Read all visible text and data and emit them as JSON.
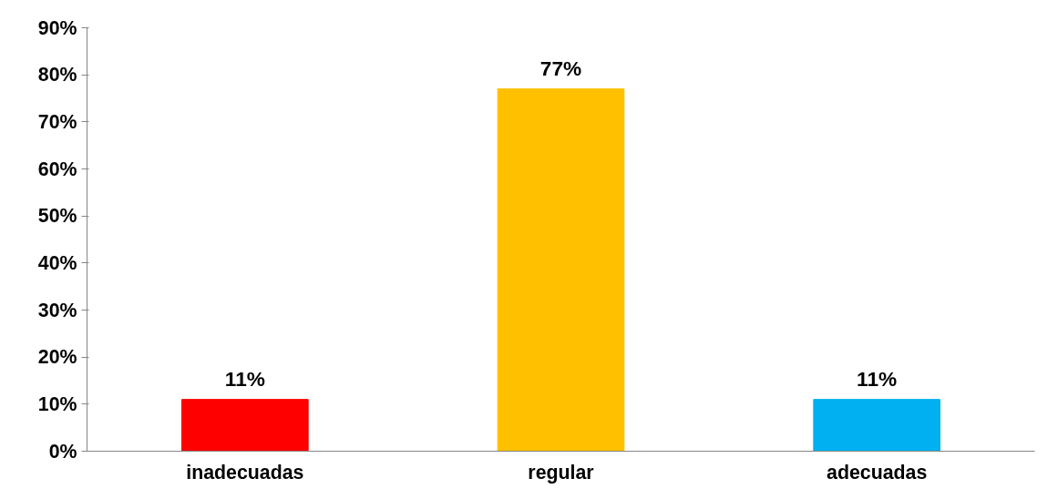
{
  "chart_data": {
    "type": "bar",
    "categories": [
      "inadecuadas",
      "regular",
      "adecuadas"
    ],
    "values": [
      11,
      77,
      11
    ],
    "colors": [
      "#ff0000",
      "#ffc000",
      "#00b0f0"
    ],
    "value_labels": [
      "11%",
      "77%",
      "11%"
    ],
    "ylim": [
      0,
      90
    ],
    "yticks": [
      {
        "value": 0,
        "label": "0%"
      },
      {
        "value": 10,
        "label": "10%"
      },
      {
        "value": 20,
        "label": "20%"
      },
      {
        "value": 30,
        "label": "30%"
      },
      {
        "value": 40,
        "label": "40%"
      },
      {
        "value": 50,
        "label": "50%"
      },
      {
        "value": 60,
        "label": "60%"
      },
      {
        "value": 70,
        "label": "70%"
      },
      {
        "value": 80,
        "label": "80%"
      },
      {
        "value": 90,
        "label": "90%"
      }
    ],
    "grid": false
  }
}
